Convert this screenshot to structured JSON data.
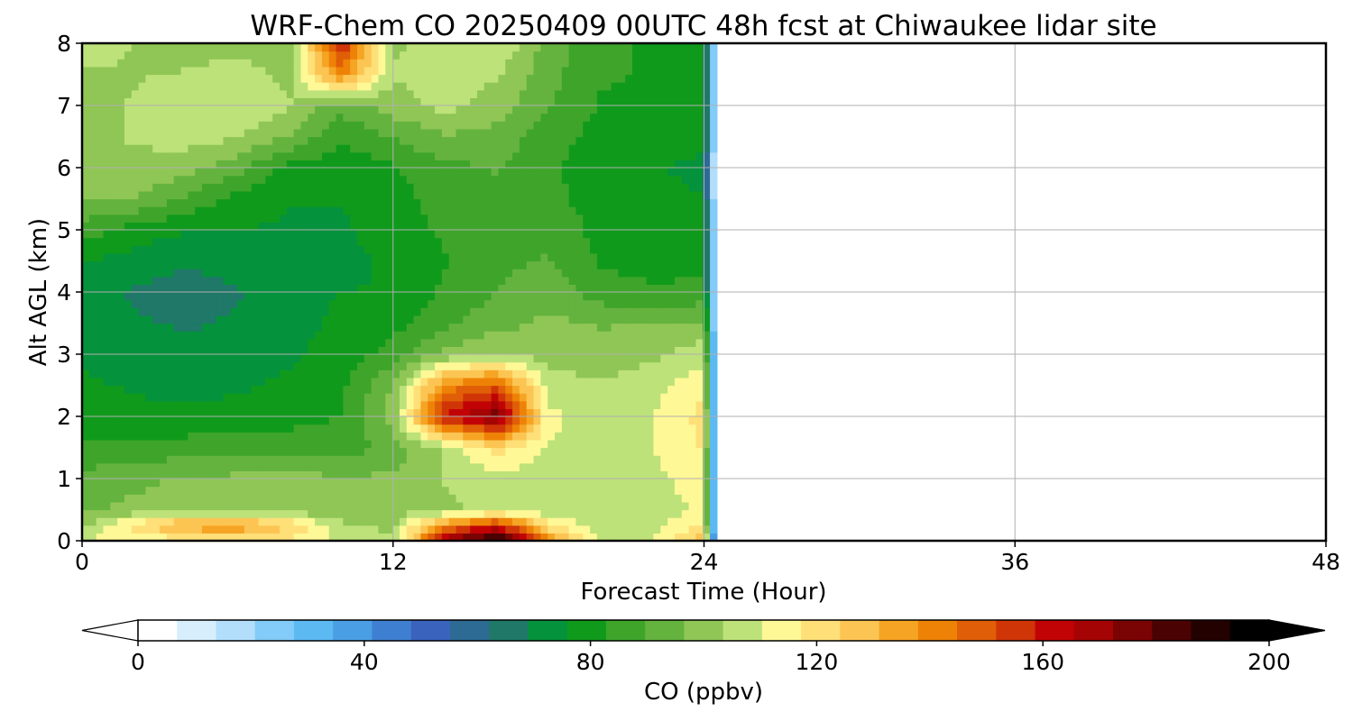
{
  "chart_data": {
    "type": "heatmap",
    "title": "WRF-Chem CO  20250409 00UTC 48h fcst at Chiwaukee lidar site",
    "xlabel": "Forecast Time (Hour)",
    "ylabel": "Alt AGL (km)",
    "xlim": [
      0,
      48
    ],
    "ylim": [
      0,
      8
    ],
    "xticks": [
      "0",
      "12",
      "24",
      "36",
      "48"
    ],
    "yticks": [
      "0",
      "1",
      "2",
      "3",
      "4",
      "5",
      "6",
      "7",
      "8"
    ],
    "grid": true,
    "x": [
      0,
      2,
      4,
      6,
      8,
      10,
      12,
      14,
      16,
      18,
      20,
      22,
      24
    ],
    "y": [
      0,
      0.25,
      0.5,
      1,
      1.5,
      2,
      2.5,
      3,
      3.5,
      4,
      4.5,
      5,
      5.5,
      6,
      6.5,
      7,
      7.5,
      8
    ],
    "z": [
      [
        112,
        110,
        115,
        118,
        115,
        108,
        104,
        170,
        195,
        140,
        108,
        110,
        130
      ],
      [
        102,
        120,
        135,
        138,
        125,
        105,
        102,
        140,
        160,
        120,
        106,
        108,
        118
      ],
      [
        96,
        98,
        101,
        100,
        98,
        99,
        100,
        102,
        106,
        104,
        104,
        106,
        112
      ],
      [
        92,
        95,
        97,
        98,
        100,
        97,
        98,
        104,
        108,
        105,
        106,
        108,
        115
      ],
      [
        84,
        85,
        86,
        88,
        87,
        86,
        92,
        105,
        120,
        110,
        108,
        110,
        118
      ],
      [
        80,
        78,
        77,
        78,
        80,
        83,
        100,
        160,
        178,
        112,
        106,
        110,
        120
      ],
      [
        77,
        75,
        74,
        75,
        77,
        81,
        97,
        140,
        150,
        108,
        104,
        108,
        115
      ],
      [
        75,
        73,
        72,
        73,
        75,
        78,
        86,
        98,
        104,
        99,
        100,
        102,
        108
      ],
      [
        75,
        70,
        68,
        70,
        74,
        77,
        80,
        88,
        94,
        98,
        96,
        96,
        98
      ],
      [
        74,
        68,
        65,
        68,
        74,
        76,
        76,
        84,
        90,
        94,
        86,
        84,
        85
      ],
      [
        76,
        73,
        70,
        73,
        76,
        74,
        77,
        82,
        88,
        90,
        82,
        80,
        80
      ],
      [
        86,
        80,
        76,
        76,
        75,
        75,
        79,
        84,
        88,
        89,
        80,
        78,
        77
      ],
      [
        98,
        96,
        88,
        80,
        76,
        76,
        80,
        86,
        88,
        85,
        79,
        77,
        76
      ],
      [
        100,
        102,
        100,
        92,
        80,
        78,
        82,
        88,
        90,
        84,
        79,
        76,
        75
      ],
      [
        102,
        104,
        106,
        104,
        96,
        84,
        90,
        96,
        94,
        86,
        80,
        78,
        77
      ],
      [
        100,
        104,
        108,
        110,
        104,
        92,
        100,
        106,
        100,
        90,
        82,
        80,
        79
      ],
      [
        102,
        103,
        104,
        106,
        102,
        140,
        104,
        108,
        104,
        92,
        84,
        82,
        80
      ],
      [
        108,
        103,
        100,
        102,
        100,
        160,
        102,
        106,
        110,
        94,
        84,
        82,
        80
      ]
    ],
    "data_end_hour": 24.5,
    "colorbar": {
      "label": "CO  (ppbv)",
      "min": 0,
      "max": 200,
      "ticks": [
        "0",
        "40",
        "80",
        "120",
        "160",
        "200"
      ],
      "extend": "both",
      "colors": [
        "#ffffff",
        "#d7eefd",
        "#b2defb",
        "#83cbf8",
        "#5cb9f2",
        "#4a9fe4",
        "#3f7fd1",
        "#3a63be",
        "#2d6b94",
        "#1f7868",
        "#05923c",
        "#109a1c",
        "#3ea52a",
        "#65b33f",
        "#8fc655",
        "#bde27a",
        "#fff896",
        "#fedf78",
        "#fcc553",
        "#f6a424",
        "#ee8207",
        "#e05e07",
        "#d03508",
        "#c20306",
        "#a50404",
        "#7a0303",
        "#4a0202",
        "#230101",
        "#000000"
      ]
    }
  }
}
